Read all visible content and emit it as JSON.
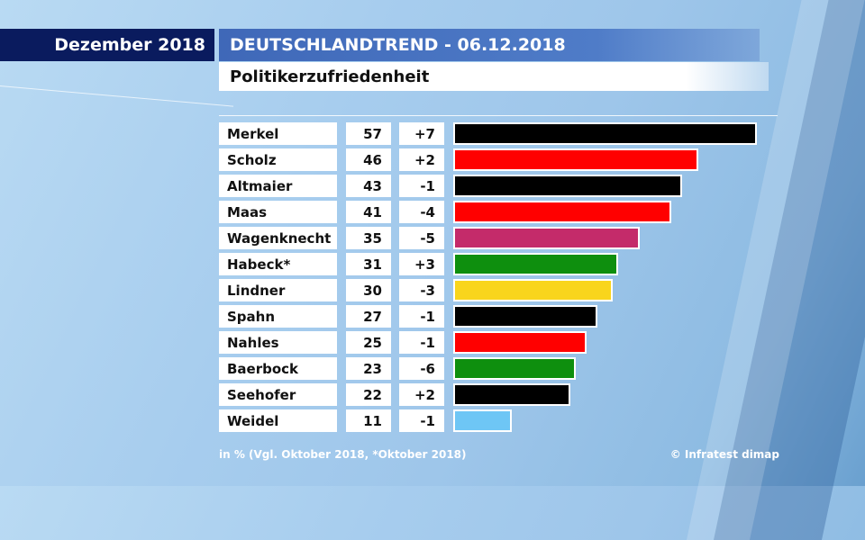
{
  "header": {
    "date_label": "Dezember 2018",
    "title": "DEUTSCHLANDTREND - 06.12.2018",
    "subtitle": "Politikerzufriedenheit"
  },
  "chart_data": {
    "type": "bar",
    "orientation": "horizontal",
    "title": "Politikerzufriedenheit",
    "unit": "%",
    "xlim": [
      0,
      57
    ],
    "categories": [
      "Merkel",
      "Scholz",
      "Altmaier",
      "Maas",
      "Wagenknecht",
      "Habeck*",
      "Lindner",
      "Spahn",
      "Nahles",
      "Baerbock",
      "Seehofer",
      "Weidel"
    ],
    "values": [
      57,
      46,
      43,
      41,
      35,
      31,
      30,
      27,
      25,
      23,
      22,
      11
    ],
    "changes": [
      "+7",
      "+2",
      "-1",
      "-4",
      "-5",
      "+3",
      "-3",
      "-1",
      "-1",
      "-6",
      "+2",
      "-1"
    ],
    "colors": [
      "#000000",
      "#ff0000",
      "#000000",
      "#ff0000",
      "#c42b6a",
      "#0e8f0e",
      "#f9d51c",
      "#000000",
      "#ff0000",
      "#0e8f0e",
      "#000000",
      "#6ec6f5"
    ]
  },
  "footer": {
    "note": "in % (Vgl. Oktober 2018, *Oktober 2018)",
    "source": "© Infratest dimap"
  }
}
